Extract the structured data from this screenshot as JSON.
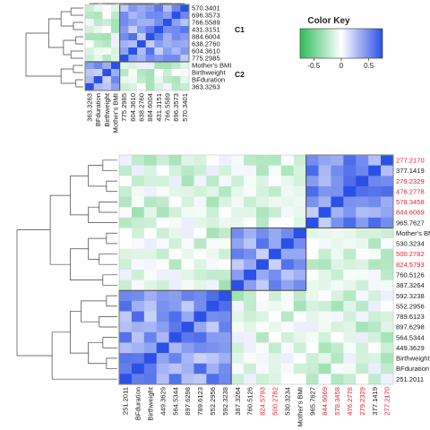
{
  "color_key": {
    "title": "Color Key",
    "ticks": [
      "-0.5",
      "0",
      "0.5"
    ],
    "tick_values": [
      -0.5,
      0,
      0.5
    ],
    "range": [
      -0.75,
      0.75
    ],
    "colors": {
      "low": "#2ebd59",
      "mid": "#ffffff",
      "high": "#2b50e6"
    }
  },
  "cluster_labels": [
    "C1",
    "C2"
  ],
  "chart_data": [
    {
      "type": "heatmap",
      "name": "",
      "row_labels": [
        "570.3401",
        "696.3573",
        "766.5589",
        "431.3151",
        "884.6004",
        "638.2760",
        "604.3610",
        "775.2985",
        "Mother's BMI",
        "Birthweight",
        "BFduration",
        "363.3263"
      ],
      "col_labels": [
        "363.3263",
        "BFduration",
        "Birthweight",
        "Mother's BMI",
        "775.2985",
        "604.3610",
        "638.2760",
        "884.6004",
        "431.3151",
        "766.5589",
        "696.3573",
        "570.3401"
      ],
      "clusters": [
        {
          "label": "C1",
          "size": 8
        },
        {
          "label": "C2",
          "size": 4
        }
      ]
    },
    {
      "type": "heatmap",
      "name": "",
      "row_labels": [
        "277.2170",
        "377.1419",
        "279.2329",
        "476.2778",
        "578.3458",
        "844.6069",
        "965.7627",
        "Mother's BMI",
        "530.3234",
        "500.2782",
        "824.5793",
        "760.5126",
        "387.3264",
        "592.3238",
        "552.2956",
        "789.6123",
        "897.6298",
        "564.5344",
        "449.3629",
        "Birthweight",
        "BFduration",
        "251.2011"
      ],
      "col_labels": [
        "251.2011",
        "BFduration",
        "Birthweight",
        "449.3629",
        "564.5344",
        "897.6298",
        "789.6123",
        "552.2956",
        "592.3238",
        "387.3264",
        "760.5126",
        "824.5793",
        "500.2782",
        "530.3234",
        "Mother's BMI",
        "965.7627",
        "844.6069",
        "578.3458",
        "476.2778",
        "279.2329",
        "377.1419",
        "277.2170"
      ],
      "red_labels": [
        "277.2170",
        "279.2329",
        "476.2778",
        "578.3458",
        "844.6069",
        "500.2782",
        "824.5793"
      ],
      "clusters": [
        {
          "size": 7
        },
        {
          "size": 6
        },
        {
          "size": 9
        }
      ]
    }
  ]
}
